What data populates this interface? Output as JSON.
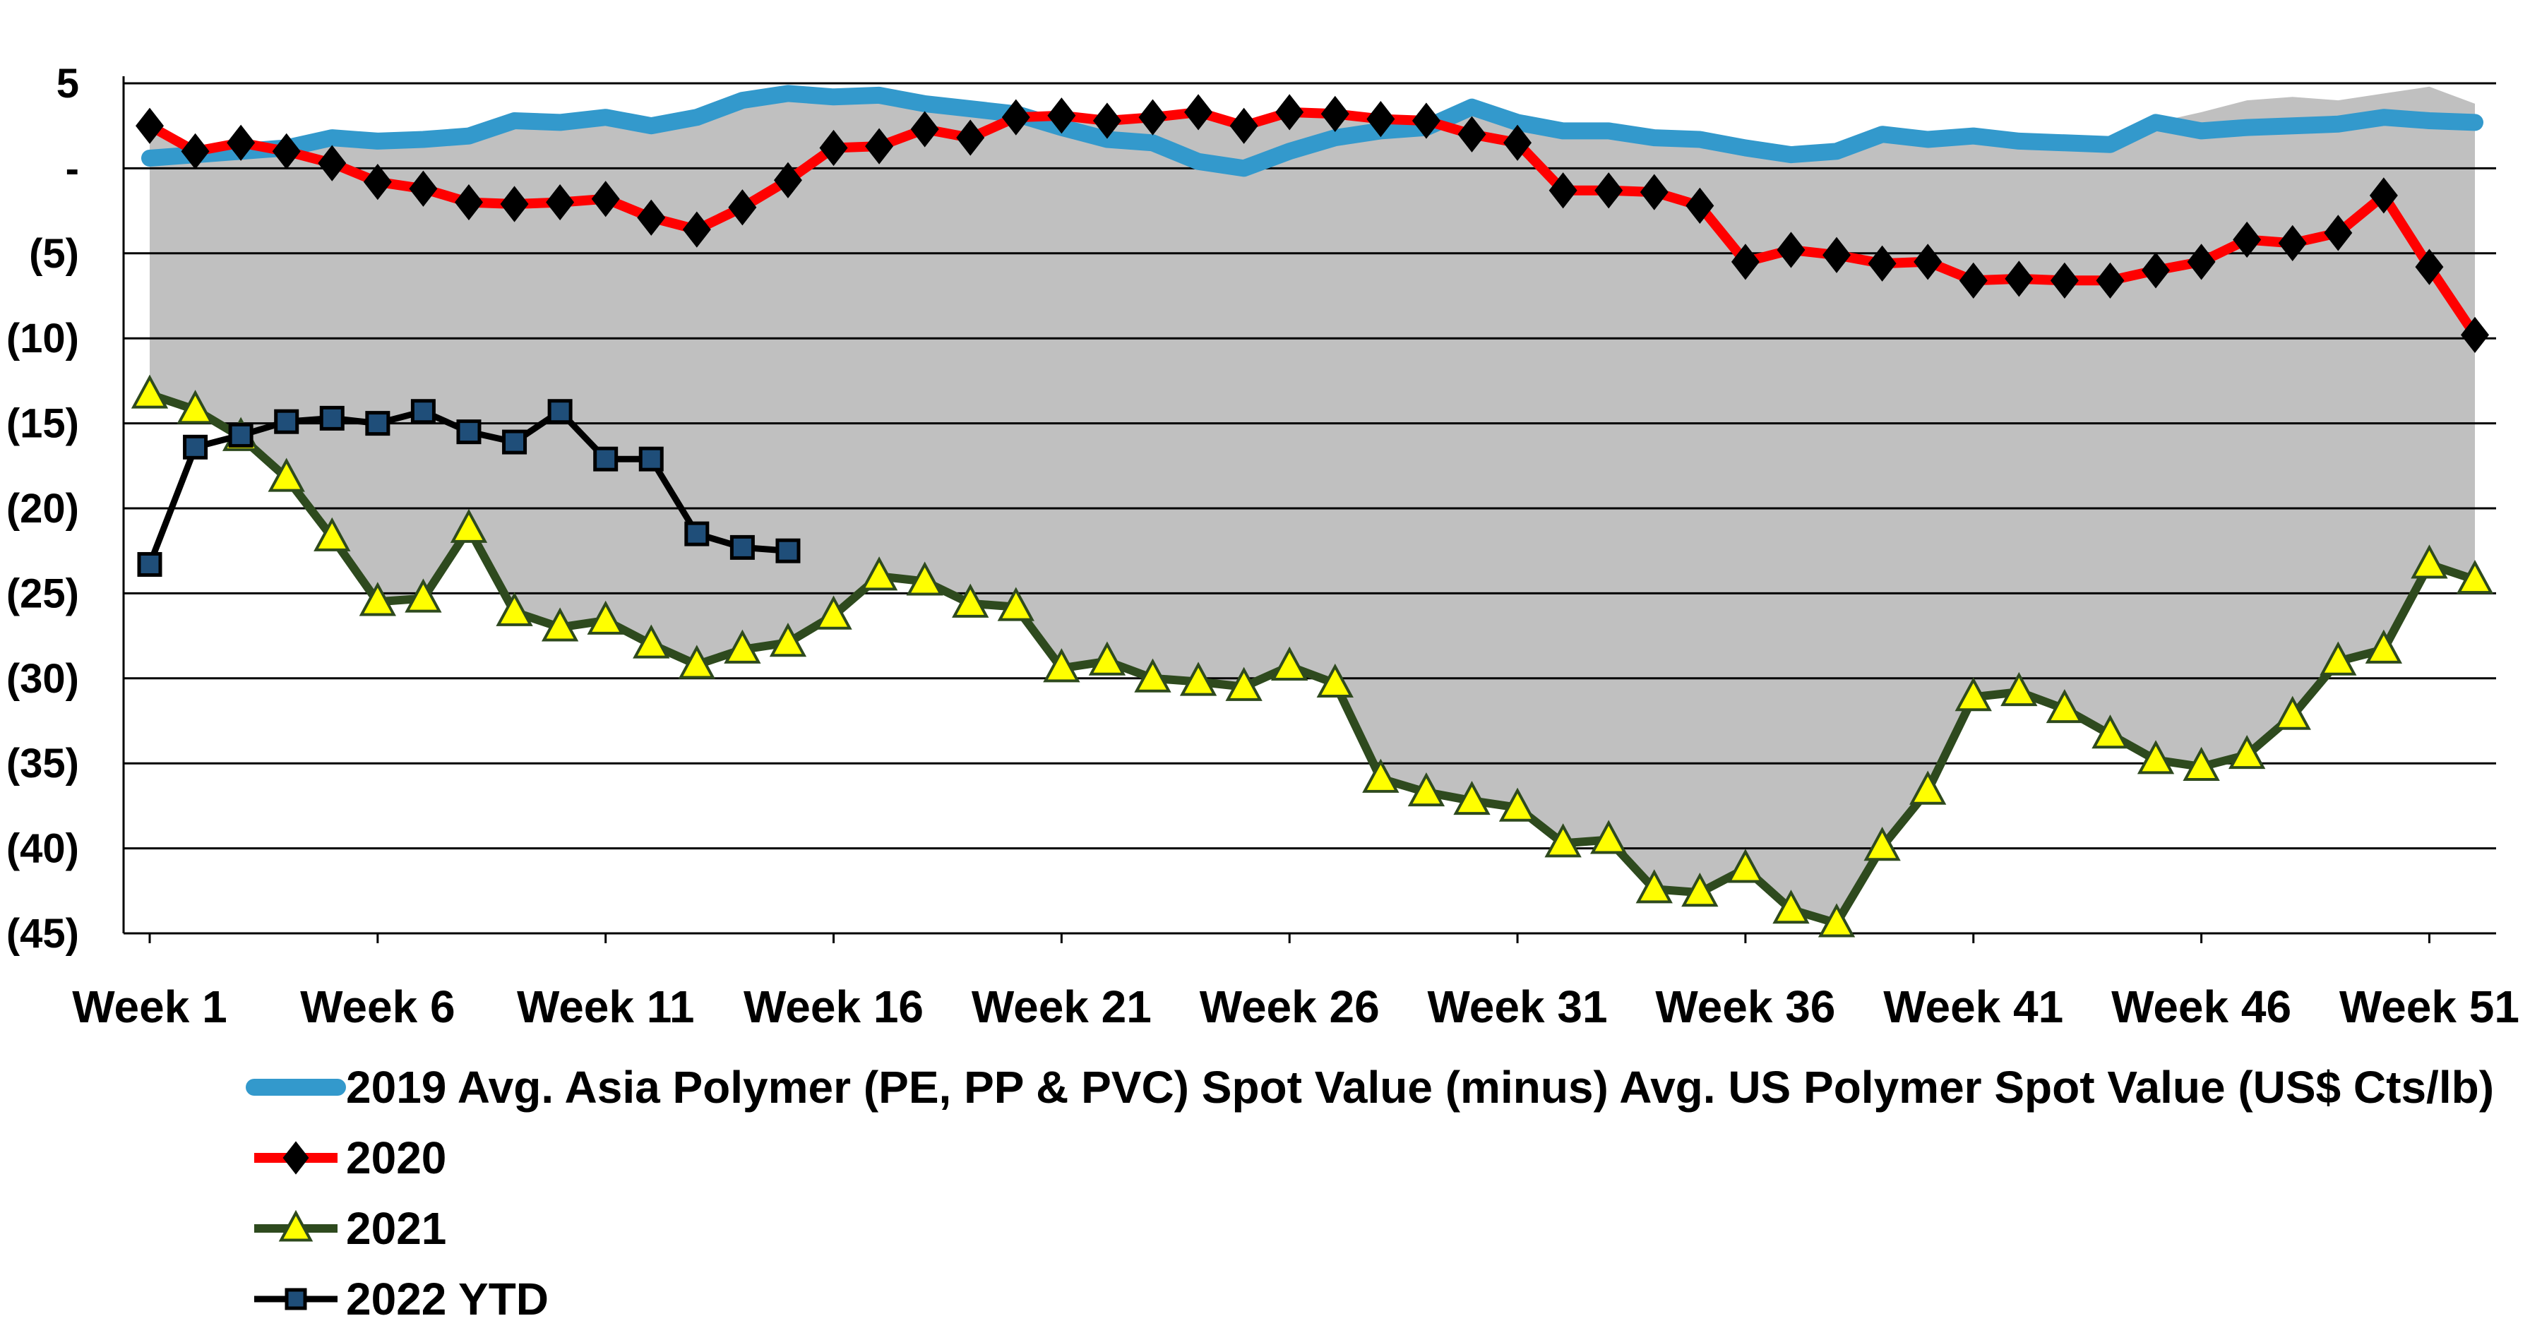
{
  "chart_data": {
    "type": "line",
    "title": "",
    "xlabel": "",
    "ylabel": "",
    "ylim": [
      -45,
      5
    ],
    "yticks": [
      5,
      0,
      -5,
      -10,
      -15,
      -20,
      -25,
      -30,
      -35,
      -40,
      -45
    ],
    "ytick_labels": [
      "5",
      "-",
      "(5)",
      "(10)",
      "(15)",
      "(20)",
      "(25)",
      "(30)",
      "(35)",
      "(40)",
      "(45)"
    ],
    "xlim": [
      1,
      52
    ],
    "xticks": [
      1,
      6,
      11,
      16,
      21,
      26,
      31,
      36,
      41,
      46,
      51
    ],
    "xtick_labels": [
      "Week 1",
      "Week 6",
      "Week 11",
      "Week 16",
      "Week 21",
      "Week 26",
      "Week 31",
      "Week 36",
      "Week 41",
      "Week 46",
      "Week 51"
    ],
    "grid": true,
    "legend_position": "bottom",
    "range_band": {
      "name": "range",
      "color": "#c0c0c0",
      "weeks": [
        1,
        2,
        3,
        4,
        5,
        6,
        7,
        8,
        9,
        10,
        11,
        12,
        13,
        14,
        15,
        16,
        17,
        18,
        19,
        20,
        21,
        22,
        23,
        24,
        25,
        26,
        27,
        28,
        29,
        30,
        31,
        32,
        33,
        34,
        35,
        36,
        37,
        38,
        39,
        40,
        41,
        42,
        43,
        44,
        45,
        46,
        47,
        48,
        49,
        50,
        51,
        52
      ],
      "upper": [
        2.5,
        1.0,
        1.5,
        1.2,
        1.8,
        1.6,
        1.7,
        1.9,
        2.8,
        2.7,
        3.0,
        2.5,
        3.0,
        4.0,
        4.4,
        4.2,
        4.3,
        3.8,
        3.5,
        3.2,
        3.2,
        2.8,
        3.3,
        3.4,
        2.8,
        3.3,
        3.2,
        2.9,
        2.8,
        3.6,
        2.7,
        2.2,
        2.2,
        1.8,
        1.7,
        1.2,
        0.8,
        1.0,
        2.0,
        1.7,
        1.9,
        1.6,
        1.5,
        1.4,
        2.7,
        3.3,
        4.0,
        4.2,
        4.0,
        4.4,
        4.8,
        3.8
      ],
      "lower": [
        -13.3,
        -14.2,
        -15.8,
        -18.2,
        -21.7,
        -25.5,
        -25.3,
        -21.2,
        -26.1,
        -27.0,
        -26.6,
        -28.0,
        -29.2,
        -28.3,
        -27.9,
        -26.3,
        -24.0,
        -24.3,
        -25.6,
        -25.8,
        -29.4,
        -29.0,
        -30.0,
        -30.2,
        -30.5,
        -29.3,
        -30.3,
        -35.9,
        -36.7,
        -37.2,
        -37.6,
        -39.7,
        -39.5,
        -42.4,
        -42.6,
        -41.2,
        -43.6,
        -44.4,
        -39.9,
        -36.6,
        -31.1,
        -30.8,
        -31.8,
        -33.3,
        -34.8,
        -35.2,
        -34.5,
        -32.2,
        -29.0,
        -28.3,
        -23.3,
        -24.2
      ]
    },
    "series": [
      {
        "name": "2019 Avg. Asia Polymer (PE, PP & PVC) Spot Value (minus) Avg. US Polymer Spot Value (US$ Cts/lb)",
        "color": "#3399cc",
        "marker": "none",
        "weeks": [
          1,
          2,
          3,
          4,
          5,
          6,
          7,
          8,
          9,
          10,
          11,
          12,
          13,
          14,
          15,
          16,
          17,
          18,
          19,
          20,
          21,
          22,
          23,
          24,
          25,
          26,
          27,
          28,
          29,
          30,
          31,
          32,
          33,
          34,
          35,
          36,
          37,
          38,
          39,
          40,
          41,
          42,
          43,
          44,
          45,
          46,
          47,
          48,
          49,
          50,
          51,
          52
        ],
        "values": [
          0.6,
          0.8,
          1.0,
          1.2,
          1.8,
          1.6,
          1.7,
          1.9,
          2.8,
          2.7,
          3.0,
          2.5,
          3.0,
          4.0,
          4.4,
          4.2,
          4.3,
          3.8,
          3.5,
          3.2,
          2.4,
          1.7,
          1.5,
          0.4,
          0.0,
          1.0,
          1.8,
          2.2,
          2.4,
          3.6,
          2.7,
          2.2,
          2.2,
          1.8,
          1.7,
          1.2,
          0.8,
          1.0,
          2.0,
          1.7,
          1.9,
          1.6,
          1.5,
          1.4,
          2.7,
          2.2,
          2.4,
          2.5,
          2.6,
          3.0,
          2.8,
          2.7
        ]
      },
      {
        "name": "2020",
        "color": "#ff0000",
        "marker": "diamond",
        "weeks": [
          1,
          2,
          3,
          4,
          5,
          6,
          7,
          8,
          9,
          10,
          11,
          12,
          13,
          14,
          15,
          16,
          17,
          18,
          19,
          20,
          21,
          22,
          23,
          24,
          25,
          26,
          27,
          28,
          29,
          30,
          31,
          32,
          33,
          34,
          35,
          36,
          37,
          38,
          39,
          40,
          41,
          42,
          43,
          44,
          45,
          46,
          47,
          48,
          49,
          50,
          51,
          52
        ],
        "values": [
          2.5,
          1.0,
          1.5,
          1.0,
          0.3,
          -0.8,
          -1.2,
          -2.0,
          -2.1,
          -2.0,
          -1.8,
          -2.9,
          -3.6,
          -2.3,
          -0.7,
          1.2,
          1.3,
          2.3,
          1.8,
          3.0,
          3.1,
          2.8,
          3.0,
          3.3,
          2.5,
          3.3,
          3.2,
          2.9,
          2.8,
          2.0,
          1.5,
          -1.3,
          -1.3,
          -1.4,
          -2.2,
          -5.5,
          -4.8,
          -5.1,
          -5.6,
          -5.5,
          -6.6,
          -6.5,
          -6.6,
          -6.6,
          -6.0,
          -5.5,
          -4.2,
          -4.4,
          -3.8,
          -1.6,
          -5.8,
          -9.8
        ]
      },
      {
        "name": "2021",
        "color": "#2e4a1e",
        "marker": "triangle",
        "weeks": [
          1,
          2,
          3,
          4,
          5,
          6,
          7,
          8,
          9,
          10,
          11,
          12,
          13,
          14,
          15,
          16,
          17,
          18,
          19,
          20,
          21,
          22,
          23,
          24,
          25,
          26,
          27,
          28,
          29,
          30,
          31,
          32,
          33,
          34,
          35,
          36,
          37,
          38,
          39,
          40,
          41,
          42,
          43,
          44,
          45,
          46,
          47,
          48,
          49,
          50,
          51,
          52
        ],
        "values": [
          -13.3,
          -14.2,
          -15.8,
          -18.2,
          -21.7,
          -25.5,
          -25.3,
          -21.2,
          -26.1,
          -27.0,
          -26.6,
          -28.0,
          -29.2,
          -28.3,
          -27.9,
          -26.3,
          -24.0,
          -24.3,
          -25.6,
          -25.8,
          -29.4,
          -29.0,
          -30.0,
          -30.2,
          -30.5,
          -29.3,
          -30.3,
          -35.9,
          -36.7,
          -37.2,
          -37.6,
          -39.7,
          -39.5,
          -42.4,
          -42.6,
          -41.2,
          -43.6,
          -44.4,
          -39.9,
          -36.6,
          -31.1,
          -30.8,
          -31.8,
          -33.3,
          -34.8,
          -35.2,
          -34.5,
          -32.2,
          -29.0,
          -28.3,
          -23.3,
          -24.2
        ]
      },
      {
        "name": "2022 YTD",
        "color": "#000000",
        "marker": "square",
        "weeks": [
          1,
          2,
          3,
          4,
          5,
          6,
          7,
          8,
          9,
          10,
          11,
          12,
          13,
          14,
          15
        ],
        "values": [
          -23.3,
          -16.4,
          -15.7,
          -14.9,
          -14.7,
          -15.0,
          -14.3,
          -15.5,
          -16.1,
          -14.3,
          -17.1,
          -17.1,
          -21.5,
          -22.3,
          -22.5
        ]
      }
    ]
  }
}
